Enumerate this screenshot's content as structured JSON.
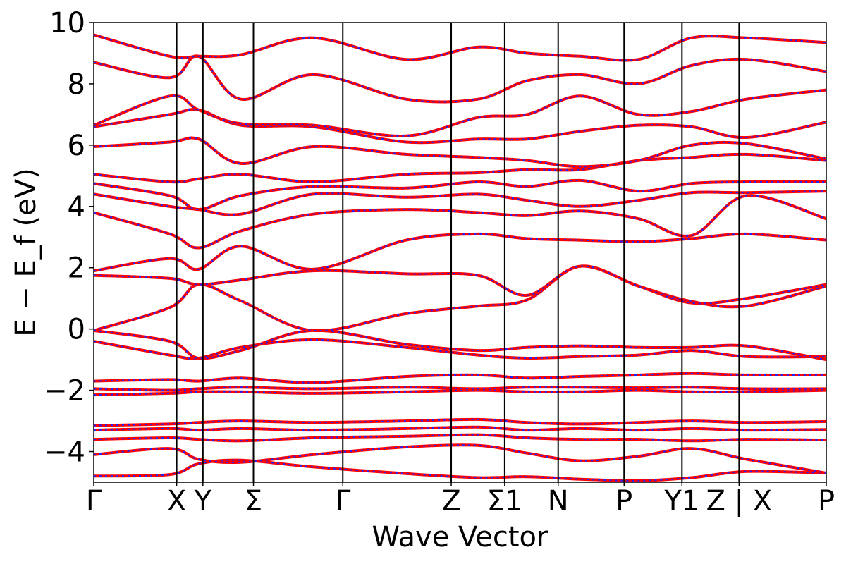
{
  "chart_data": {
    "type": "line",
    "xlabel": "Wave Vector",
    "ylabel": "E − E_f (eV)",
    "ylim": [
      -5,
      10
    ],
    "y_ticks": [
      -4,
      -2,
      0,
      2,
      4,
      6,
      8,
      10
    ],
    "y_tick_labels": [
      "−4",
      "−2",
      "0",
      "2",
      "4",
      "6",
      "8",
      "10"
    ],
    "grid": false,
    "legend": "none",
    "kpath": {
      "labels": [
        "Γ",
        "X",
        "Y",
        "Σ",
        "Γ",
        "Z",
        "Σ1",
        "N",
        "P",
        "Y1",
        "Z | X",
        "P"
      ],
      "positions": [
        0,
        0.1132,
        0.149,
        0.218,
        0.34,
        0.488,
        0.561,
        0.634,
        0.724,
        0.803,
        0.881,
        1.0
      ]
    },
    "colors": {
      "band_red": "#ff0000",
      "band_blue": "#1f1fff"
    },
    "series": [
      {
        "values": [
          -4.8,
          -4.75,
          -4.4,
          -4.28,
          -4.5,
          -4.72,
          -4.85,
          -4.82,
          -4.9,
          -4.95,
          -4.85,
          -4.65,
          -4.7
        ]
      },
      {
        "values": [
          -4.1,
          -3.9,
          -4.25,
          -4.35,
          -4.1,
          -3.85,
          -3.8,
          -4.05,
          -4.3,
          -4.15,
          -3.9,
          -4.25,
          -4.7
        ]
      },
      {
        "values": [
          -3.6,
          -3.55,
          -3.6,
          -3.65,
          -3.55,
          -3.5,
          -3.45,
          -3.55,
          -3.6,
          -3.6,
          -3.65,
          -3.6,
          -3.62
        ]
      },
      {
        "values": [
          -3.3,
          -3.25,
          -3.3,
          -3.25,
          -3.3,
          -3.25,
          -3.2,
          -3.3,
          -3.25,
          -3.3,
          -3.25,
          -3.3,
          -3.28
        ]
      },
      {
        "values": [
          -3.15,
          -3.1,
          -3.05,
          -3.0,
          -3.05,
          -3.0,
          -2.95,
          -3.05,
          -3.1,
          -3.05,
          -3.0,
          -3.05,
          -3.02
        ]
      },
      {
        "values": [
          -2.15,
          -2.1,
          -2.05,
          -2.05,
          -2.1,
          -2.05,
          -2.0,
          -2.05,
          -2.05,
          -2.0,
          -2.05,
          -2.05,
          -2.0
        ]
      },
      {
        "values": [
          -1.95,
          -2.0,
          -1.95,
          -1.9,
          -1.95,
          -1.9,
          -1.95,
          -1.9,
          -1.9,
          -1.92,
          -1.9,
          -1.95,
          -1.95
        ]
      },
      {
        "values": [
          -1.7,
          -1.65,
          -1.7,
          -1.6,
          -1.75,
          -1.55,
          -1.5,
          -1.6,
          -1.55,
          -1.5,
          -1.45,
          -1.5,
          -1.5
        ]
      },
      {
        "values": [
          -0.4,
          -0.85,
          -0.95,
          -0.6,
          -0.35,
          -0.6,
          -0.85,
          -0.95,
          -0.9,
          -0.85,
          -0.7,
          -0.9,
          -0.9
        ]
      },
      {
        "values": [
          -0.05,
          -0.4,
          -0.95,
          -0.7,
          -0.05,
          -0.5,
          -0.7,
          -0.6,
          -0.55,
          -0.6,
          -0.6,
          -0.55,
          -1.0
        ]
      },
      {
        "values": [
          -0.05,
          0.7,
          1.45,
          0.92,
          -0.05,
          0.5,
          0.75,
          0.95,
          2.05,
          1.4,
          0.9,
          0.75,
          1.4
        ]
      },
      {
        "values": [
          1.75,
          1.65,
          1.45,
          1.6,
          1.9,
          1.8,
          1.75,
          1.1,
          2.05,
          1.4,
          0.85,
          1.0,
          1.45
        ]
      },
      {
        "values": [
          1.9,
          2.3,
          1.95,
          2.7,
          1.95,
          2.9,
          3.1,
          2.95,
          2.9,
          2.85,
          2.95,
          3.1,
          2.9
        ]
      },
      {
        "values": [
          3.8,
          3.1,
          2.65,
          3.2,
          3.75,
          3.9,
          3.8,
          3.7,
          3.85,
          3.6,
          3.05,
          4.35,
          3.6
        ]
      },
      {
        "values": [
          4.4,
          4.0,
          3.9,
          3.75,
          4.4,
          4.3,
          4.4,
          4.2,
          4.0,
          4.2,
          4.45,
          4.45,
          4.5
        ]
      },
      {
        "values": [
          4.75,
          4.35,
          3.9,
          4.35,
          4.65,
          4.6,
          4.8,
          4.65,
          4.85,
          4.5,
          4.75,
          4.8,
          4.8
        ]
      },
      {
        "values": [
          5.05,
          4.8,
          4.9,
          5.05,
          4.8,
          5.05,
          5.1,
          5.2,
          5.2,
          5.5,
          5.6,
          5.7,
          5.5
        ]
      },
      {
        "values": [
          5.95,
          6.1,
          6.2,
          5.4,
          5.95,
          5.7,
          5.6,
          5.5,
          5.3,
          5.5,
          6.0,
          6.05,
          5.55
        ]
      },
      {
        "values": [
          6.6,
          7.0,
          7.15,
          6.65,
          6.6,
          6.1,
          6.2,
          6.2,
          6.45,
          6.65,
          6.6,
          6.25,
          6.75
        ]
      },
      {
        "values": [
          6.65,
          7.6,
          7.15,
          6.7,
          6.65,
          6.3,
          6.9,
          7.0,
          7.6,
          7.0,
          7.1,
          7.5,
          7.8
        ]
      },
      {
        "values": [
          8.7,
          8.2,
          8.9,
          7.5,
          8.3,
          7.5,
          7.5,
          8.1,
          8.3,
          8.0,
          8.6,
          8.8,
          8.4
        ]
      },
      {
        "values": [
          9.6,
          8.9,
          8.9,
          8.95,
          9.5,
          8.8,
          9.2,
          9.0,
          8.9,
          8.8,
          9.5,
          9.5,
          9.35
        ]
      }
    ]
  }
}
